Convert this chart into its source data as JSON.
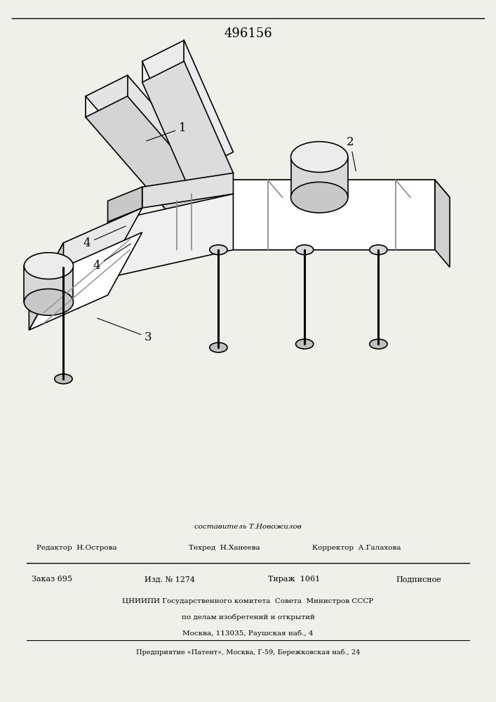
{
  "patent_number": "496156",
  "background_color": "#f0f0eb",
  "footer": {
    "compiler": "составитель Т.Новожилов",
    "editor": "Редактор  Н.Острова",
    "tech": "Техред  Н.Ханеева",
    "corrector": "Корректор  А.Галахова",
    "order": "Заказ 695",
    "izd": "Изд. № 1274",
    "tirazh": "Тираж  1061",
    "podpisnoe": "Подписное",
    "org_line1": "ЦНИИПИ Государственного комитета  Совета  Министров СССР",
    "org_line2": "по делам изобретений и открытий",
    "org_line3": "Москва, 113035, Раушская наб., 4",
    "enterprise": "Предприятие «Патент», Москва, Г-59, Бережковская наб., 24"
  }
}
